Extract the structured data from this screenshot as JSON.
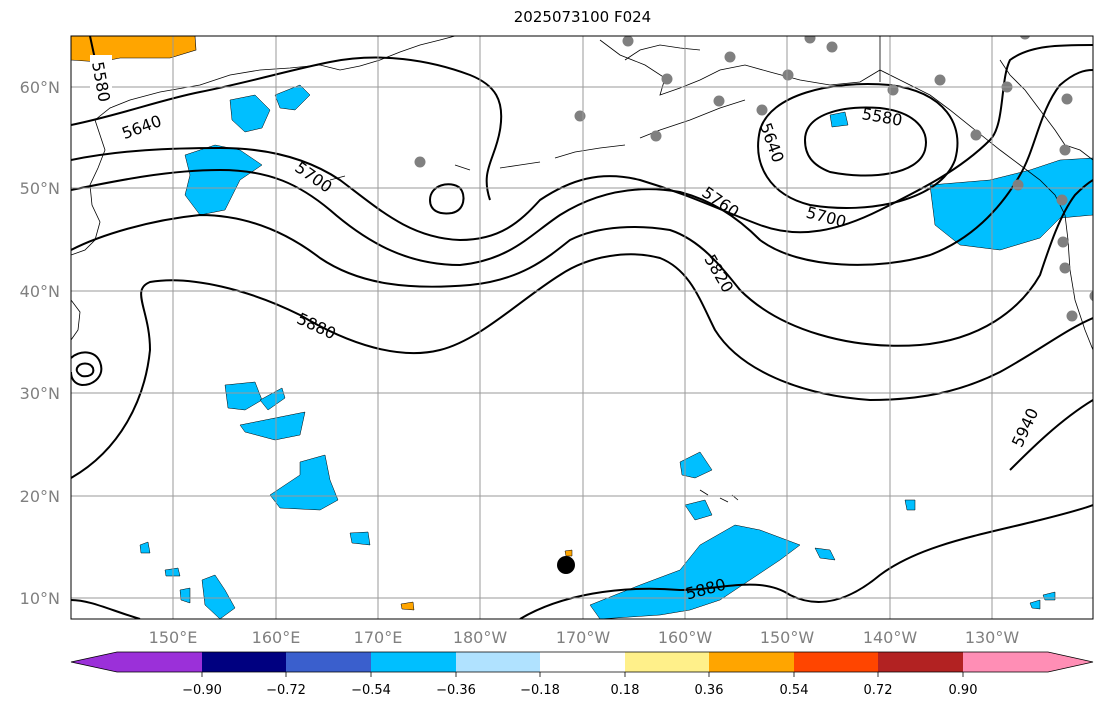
{
  "title": "2025073100 F024",
  "map": {
    "lat_labels": [
      "10°N",
      "20°N",
      "30°N",
      "40°N",
      "50°N",
      "60°N"
    ],
    "lon_labels": [
      "150°E",
      "160°E",
      "170°E",
      "180°W",
      "170°W",
      "160°W",
      "150°W",
      "140°W",
      "130°W"
    ],
    "contour_labels": [
      "5580",
      "5640",
      "5700",
      "5580",
      "5640",
      "5700",
      "5760",
      "5820",
      "5880",
      "5940",
      "5880"
    ]
  },
  "colorbar": {
    "ticks": [
      "−0.90",
      "−0.72",
      "−0.54",
      "−0.36",
      "−0.18",
      "0.18",
      "0.36",
      "0.54",
      "0.72",
      "0.90"
    ],
    "colors": [
      "#9b30d9",
      "#000080",
      "#3a5fcd",
      "#00bfff",
      "#b0e2ff",
      "#ffffff",
      "#fff08a",
      "#ffa500",
      "#ff4500",
      "#b22222",
      "#ff8eb5"
    ]
  }
}
